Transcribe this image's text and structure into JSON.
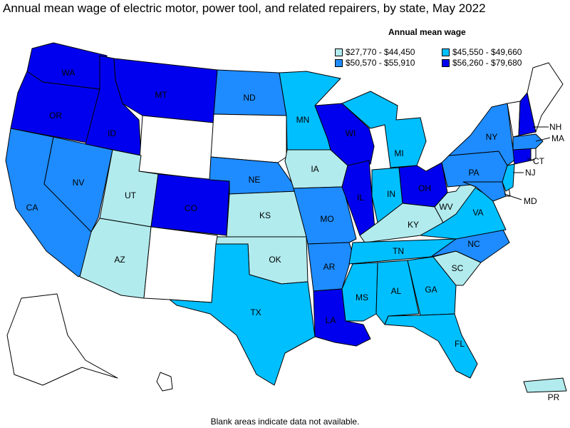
{
  "title": "Annual mean wage of electric motor, power tool, and related repairers, by state, May 2022",
  "legend": {
    "title": "Annual mean wage",
    "items": [
      {
        "label": "$27,770 - $44,450",
        "color": "#b2ebee"
      },
      {
        "label": "$45,550 - $49,660",
        "color": "#00bfff"
      },
      {
        "label": "$50,570 - $55,910",
        "color": "#1e8cff"
      },
      {
        "label": "$56,260 - $79,680",
        "color": "#0000ee"
      }
    ]
  },
  "footnote": "Blank areas indicate data not available.",
  "states": {
    "WA": {
      "label": "WA",
      "bin": 4
    },
    "OR": {
      "label": "OR",
      "bin": 4
    },
    "ID": {
      "label": "ID",
      "bin": 4
    },
    "MT": {
      "label": "MT",
      "bin": 4
    },
    "CO": {
      "label": "CO",
      "bin": 4
    },
    "WI": {
      "label": "WI",
      "bin": 4
    },
    "IL": {
      "label": "IL",
      "bin": 4
    },
    "OH": {
      "label": "OH",
      "bin": 4
    },
    "LA": {
      "label": "LA",
      "bin": 4
    },
    "NH": {
      "label": "NH",
      "bin": 4
    },
    "CT": {
      "label": "CT",
      "bin": 4
    },
    "CA": {
      "label": "CA",
      "bin": 3
    },
    "NV": {
      "label": "NV",
      "bin": 3
    },
    "ND": {
      "label": "ND",
      "bin": 3
    },
    "NE": {
      "label": "NE",
      "bin": 3
    },
    "MO": {
      "label": "MO",
      "bin": 3
    },
    "AR": {
      "label": "AR",
      "bin": 3
    },
    "NY": {
      "label": "NY",
      "bin": 3
    },
    "PA": {
      "label": "PA",
      "bin": 3
    },
    "NC": {
      "label": "NC",
      "bin": 3
    },
    "MA": {
      "label": "MA",
      "bin": 3
    },
    "MD": {
      "label": "MD",
      "bin": 3
    },
    "TX": {
      "label": "TX",
      "bin": 2
    },
    "MN": {
      "label": "MN",
      "bin": 2
    },
    "MI": {
      "label": "MI",
      "bin": 2
    },
    "IN": {
      "label": "IN",
      "bin": 2
    },
    "TN": {
      "label": "TN",
      "bin": 2
    },
    "VA": {
      "label": "VA",
      "bin": 2
    },
    "MS": {
      "label": "MS",
      "bin": 2
    },
    "AL": {
      "label": "AL",
      "bin": 2
    },
    "GA": {
      "label": "GA",
      "bin": 2
    },
    "FL": {
      "label": "FL",
      "bin": 2
    },
    "NJ": {
      "label": "NJ",
      "bin": 2
    },
    "UT": {
      "label": "UT",
      "bin": 1
    },
    "AZ": {
      "label": "AZ",
      "bin": 1
    },
    "KS": {
      "label": "KS",
      "bin": 1
    },
    "OK": {
      "label": "OK",
      "bin": 1
    },
    "IA": {
      "label": "IA",
      "bin": 1
    },
    "KY": {
      "label": "KY",
      "bin": 1
    },
    "WV": {
      "label": "WV",
      "bin": 1
    },
    "SC": {
      "label": "SC",
      "bin": 1
    },
    "PR": {
      "label": "PR",
      "bin": 1
    },
    "WY": {
      "bin": 0
    },
    "SD": {
      "bin": 0
    },
    "NM": {
      "bin": 0
    },
    "ME": {
      "bin": 0
    },
    "VT": {
      "bin": 0
    },
    "RI": {
      "bin": 0
    },
    "DE": {
      "bin": 0
    },
    "AK": {
      "bin": 0
    },
    "HI": {
      "bin": 0
    }
  }
}
